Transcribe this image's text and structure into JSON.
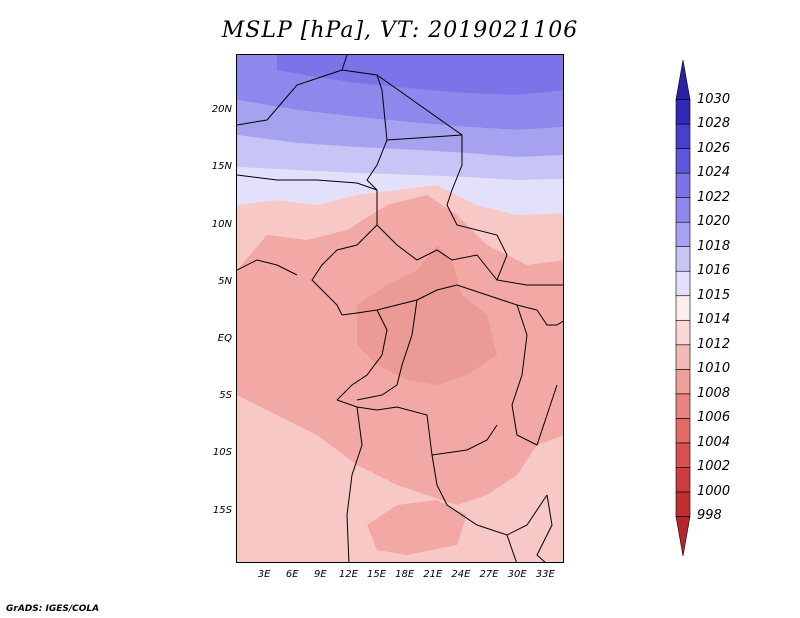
{
  "title": "MSLP [hPa], VT: 2019021106",
  "footer": "GrADS: IGES/COLA",
  "map": {
    "variable": "Mean sea level pressure",
    "units": "hPa",
    "lon_range": [
      0,
      35
    ],
    "lat_range": [
      -19.5,
      25
    ],
    "lat_labels": [
      "20N",
      "15N",
      "10N",
      "5N",
      "EQ",
      "5S",
      "10S",
      "15S"
    ],
    "lat_values": [
      20,
      15,
      10,
      5,
      0,
      -5,
      -10,
      -15
    ],
    "lon_labels": [
      "3E",
      "6E",
      "9E",
      "12E",
      "15E",
      "18E",
      "21E",
      "24E",
      "27E",
      "30E",
      "33E"
    ],
    "lon_values": [
      3,
      6,
      9,
      12,
      15,
      18,
      21,
      24,
      27,
      30,
      33
    ],
    "regions": [
      {
        "level": "1022",
        "color": "#7b74e8"
      },
      {
        "level": "1020",
        "color": "#8f88ec"
      },
      {
        "level": "1018",
        "color": "#a7a2f0"
      },
      {
        "level": "1016",
        "color": "#c7c4f6"
      },
      {
        "level": "1015",
        "color": "#e2e0fa"
      },
      {
        "level": "1014",
        "color": "#fdeeee"
      },
      {
        "level": "1012",
        "color": "#f8c8c6"
      },
      {
        "level": "1010",
        "color": "#f2a9a6"
      },
      {
        "level": "1008",
        "color": "#eb9a96"
      }
    ]
  },
  "colorbar": {
    "levels": [
      "998",
      "1000",
      "1002",
      "1004",
      "1006",
      "1008",
      "1010",
      "1012",
      "1014",
      "1015",
      "1016",
      "1018",
      "1020",
      "1022",
      "1024",
      "1026",
      "1028",
      "1030"
    ],
    "colors": [
      "#b5272c",
      "#c22f33",
      "#cf3c3e",
      "#da5050",
      "#e26a67",
      "#e98580",
      "#eea09b",
      "#f3bab5",
      "#f9d7d4",
      "#fdeeee",
      "#e2e0fa",
      "#c7c4f6",
      "#a7a2f0",
      "#8f88ec",
      "#7b74e8",
      "#5e57dd",
      "#4740cf",
      "#3129b8",
      "#2a20a8"
    ]
  }
}
